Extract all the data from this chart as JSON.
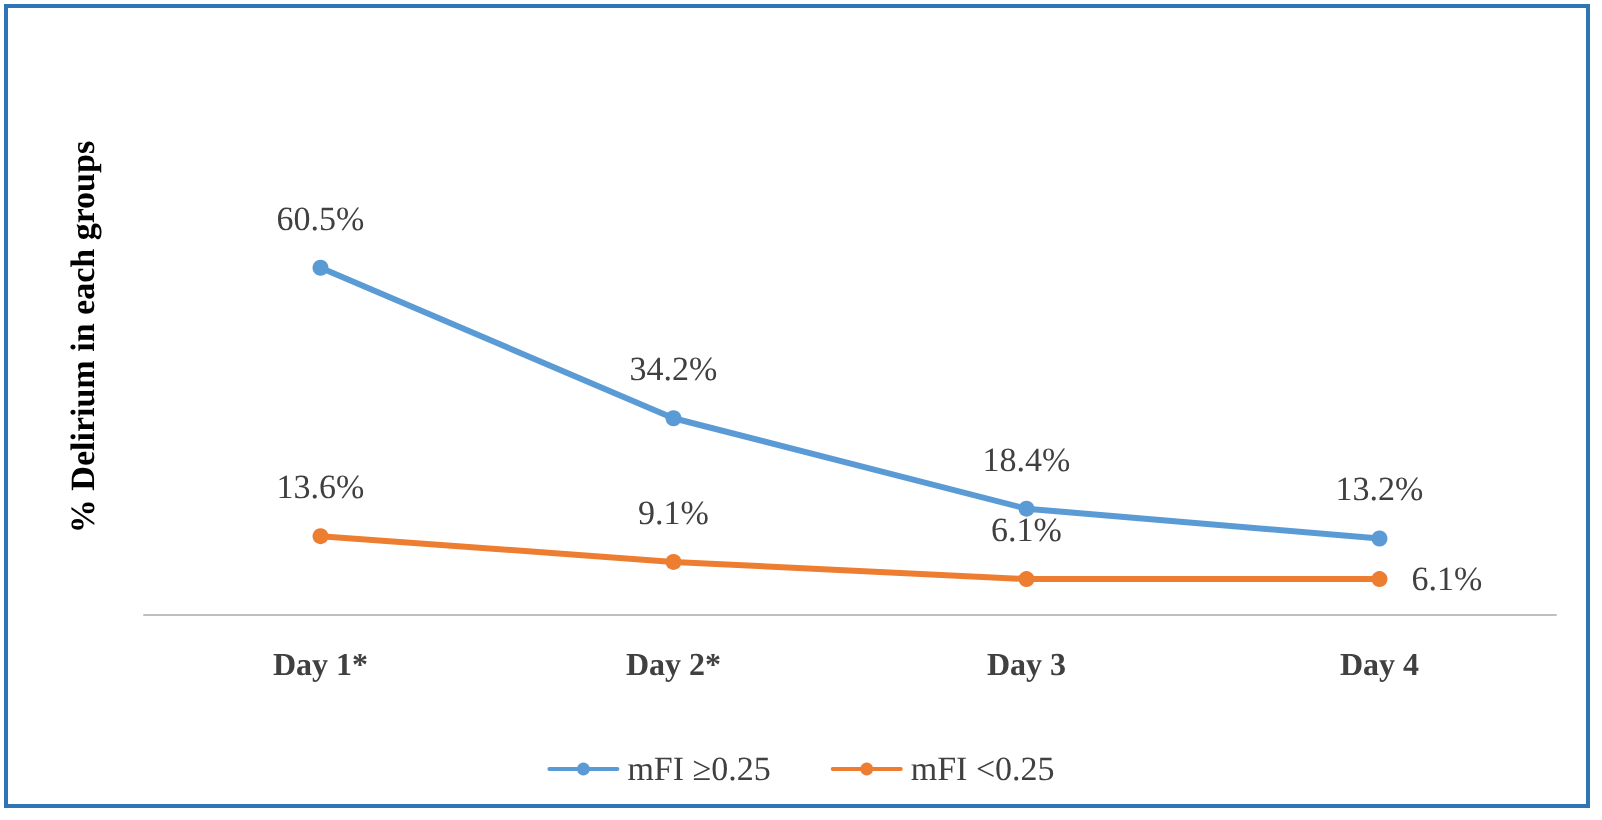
{
  "chart_data": {
    "type": "line",
    "ylabel": "% Delirium in each groups",
    "categories": [
      "Day 1*",
      "Day 2*",
      "Day 3",
      "Day 4"
    ],
    "series": [
      {
        "name": "mFI ≥0.25",
        "color": "#5b9bd5",
        "values": [
          60.5,
          34.2,
          18.4,
          13.2
        ],
        "value_labels": [
          "60.5%",
          "34.2%",
          "18.4%",
          "13.2%"
        ]
      },
      {
        "name": "mFI <0.25",
        "color": "#ed7d31",
        "values": [
          13.6,
          9.1,
          6.1,
          6.1
        ],
        "value_labels": [
          "13.6%",
          "9.1%",
          "6.1%",
          "6.1%"
        ]
      }
    ],
    "legend": "bottom",
    "marker": "circle",
    "line_style": "solid",
    "grid": false
  }
}
